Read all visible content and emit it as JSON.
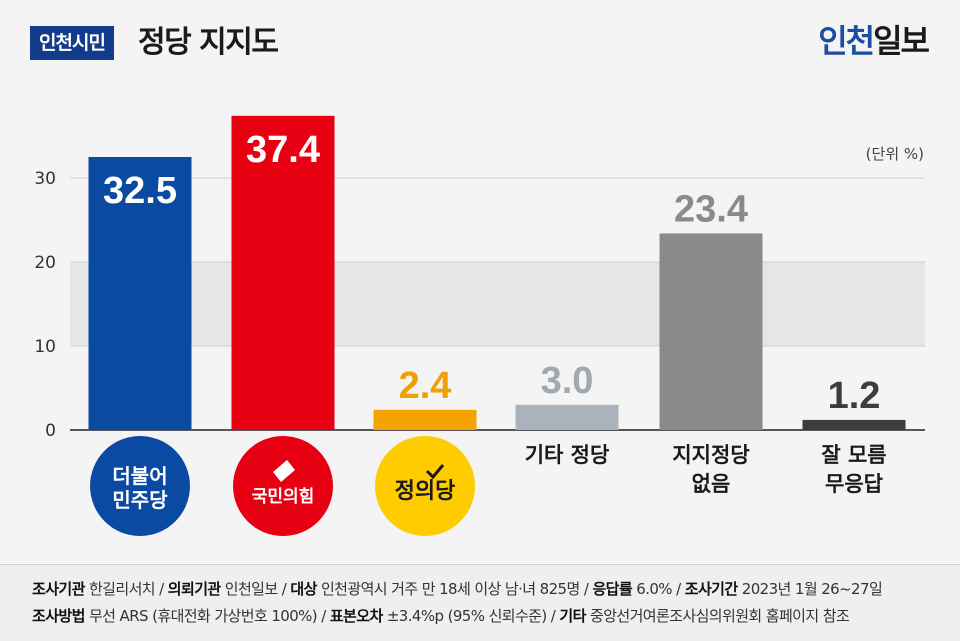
{
  "header": {
    "badge": "인천시민",
    "title": "정당 지지도",
    "brand_part1": "인천",
    "brand_part2": "일보"
  },
  "unit_label": "(단위 %)",
  "chart_data": {
    "type": "bar",
    "categories": [
      "더불어민주당",
      "국민의힘",
      "정의당",
      "기타 정당",
      "지지정당 없음",
      "잘 모름 무응답"
    ],
    "values": [
      32.5,
      37.4,
      2.4,
      3.0,
      23.4,
      1.2
    ],
    "value_labels": [
      "32.5",
      "37.4",
      "2.4",
      "3.0",
      "23.4",
      "1.2"
    ],
    "colors": [
      "#0b4aa2",
      "#e60012",
      "#f5a300",
      "#aab3bb",
      "#8a8a8a",
      "#3d3d3d"
    ],
    "label_colors": [
      "#ffffff",
      "#ffffff",
      "#f0a000",
      "#a0a8b0",
      "#8a8a8a",
      "#3d3d3d"
    ],
    "labels_inside": [
      true,
      true,
      false,
      false,
      false,
      false
    ],
    "party_logos": [
      {
        "lines": [
          "더불어",
          "민주당"
        ],
        "bg": "#0b4aa2",
        "fg": "#ffffff"
      },
      {
        "lines": [
          "국민의힘"
        ],
        "bg": "#e60012",
        "fg": "#ffffff"
      },
      {
        "lines": [
          "정의당"
        ],
        "bg": "#ffcc00",
        "fg": "#1a1a1a"
      }
    ],
    "text_labels": [
      null,
      null,
      null,
      [
        "기타 정당"
      ],
      [
        "지지정당",
        "없음"
      ],
      [
        "잘 모름",
        "무응답"
      ]
    ],
    "yticks": [
      0,
      10,
      20,
      30
    ],
    "ylim": [
      0,
      40
    ],
    "grid": true
  },
  "footer": {
    "line1": [
      {
        "label": "조사기관",
        "value": "한길리서치"
      },
      {
        "label": "의뢰기관",
        "value": "인천일보"
      },
      {
        "label": "대상",
        "value": "인천광역시 거주 만 18세 이상 남·녀 825명"
      },
      {
        "label": "응답률",
        "value": "6.0%"
      },
      {
        "label": "조사기간",
        "value": "2023년 1월 26~27일"
      }
    ],
    "line2": [
      {
        "label": "조사방법",
        "value": "무선 ARS (휴대전화 가상번호 100%)"
      },
      {
        "label": "표본오차",
        "value": "±3.4%p (95% 신뢰수준)"
      },
      {
        "label": "기타",
        "value": "중앙선거여론조사심의위원회 홈페이지 참조"
      }
    ]
  }
}
